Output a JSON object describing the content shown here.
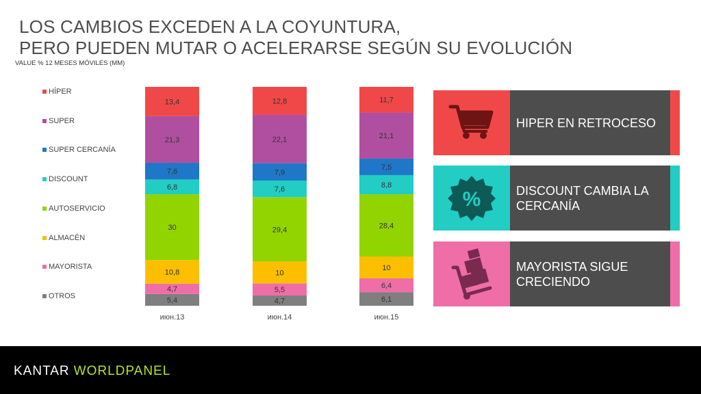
{
  "title_line1": "LOS CAMBIOS EXCEDEN A LA COYUNTURA,",
  "title_line2": "PERO PUEDEN MUTAR O ACELERARSE SEGÚN SU EVOLUCIÓN",
  "subtitle": "VALUE % 12 MESES MÓVILES (MM)",
  "chart_data": {
    "type": "bar",
    "stacked": true,
    "categories": [
      "июн.13",
      "июн.14",
      "июн.15"
    ],
    "series": [
      {
        "name": "OTROS",
        "color": "#7f7f7f",
        "values": [
          5.4,
          4.7,
          6.1
        ]
      },
      {
        "name": "MAYORISTA",
        "color": "#ef6ea8",
        "values": [
          4.7,
          5.5,
          6.4
        ]
      },
      {
        "name": "ALMACÉN",
        "color": "#fbbf00",
        "values": [
          10.8,
          10,
          10
        ]
      },
      {
        "name": "AUTOSERVICIO",
        "color": "#92d400",
        "values": [
          30,
          29.4,
          28.4
        ]
      },
      {
        "name": "DISCOUNT",
        "color": "#22cdc4",
        "values": [
          6.8,
          7.6,
          8.8
        ]
      },
      {
        "name": "SUPER CERCANÍA",
        "color": "#1f77c7",
        "values": [
          7.6,
          7.9,
          7.5
        ]
      },
      {
        "name": "SUPER",
        "color": "#b04fa0",
        "values": [
          21.3,
          22.1,
          21.1
        ]
      },
      {
        "name": "HÍPER",
        "color": "#f04848",
        "values": [
          13.4,
          12.8,
          11.7
        ]
      }
    ],
    "value_labels": [
      [
        "5,4",
        "4,7",
        "6,1"
      ],
      [
        "4,7",
        "5,5",
        "6,4"
      ],
      [
        "10,8",
        "10",
        "10"
      ],
      [
        "30",
        "29,4",
        "28,4"
      ],
      [
        "6,8",
        "7,6",
        "8,8"
      ],
      [
        "7,6",
        "7,9",
        "7,5"
      ],
      [
        "21,3",
        "22,1",
        "21,1"
      ],
      [
        "13,4",
        "12,8",
        "11,7"
      ]
    ],
    "ylim": [
      0,
      100
    ],
    "legend_position": "left",
    "legend_order": [
      "HÍPER",
      "SUPER",
      "SUPER CERCANÍA",
      "DISCOUNT",
      "AUTOSERVICIO",
      "ALMACÉN",
      "MAYORISTA",
      "OTROS"
    ]
  },
  "cards": [
    {
      "text": "HIPER EN RETROCESO",
      "color": "#f04848",
      "icon": "shopping-cart-icon"
    },
    {
      "text": "DISCOUNT CAMBIA LA CERCANÍA",
      "color": "#22cdc4",
      "icon": "percent-badge-icon"
    },
    {
      "text": "MAYORISTA SIGUE CRECIENDO",
      "color": "#ef6ea8",
      "icon": "hand-truck-icon"
    }
  ],
  "footer": {
    "brand_left": "KANTAR",
    "brand_right": "WORLDPANEL"
  }
}
